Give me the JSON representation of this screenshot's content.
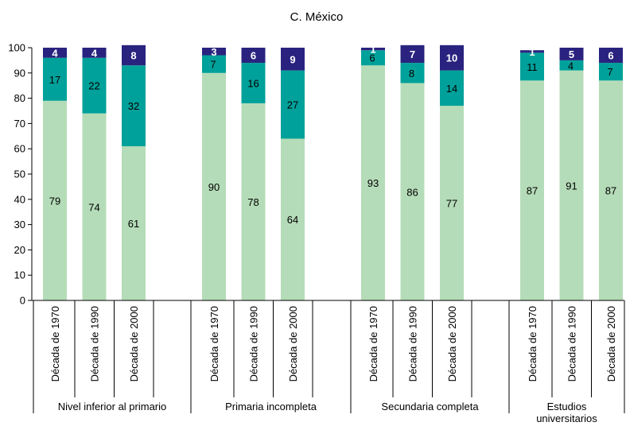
{
  "chart_data": {
    "type": "bar",
    "stacked": true,
    "title": "C. México",
    "ylim": [
      0,
      100
    ],
    "yticks": [
      0,
      10,
      20,
      30,
      40,
      50,
      60,
      70,
      80,
      90,
      100
    ],
    "groups": [
      {
        "label": "Nivel inferior al primario",
        "categories": [
          "Década de 1970",
          "Década de 1990",
          "Década de 2000"
        ]
      },
      {
        "label": "Primaria incompleta",
        "categories": [
          "Década de 1970",
          "Década de 1990",
          "Década de 2000"
        ]
      },
      {
        "label": "Secundaria completa",
        "categories": [
          "Década de 1970",
          "Década de 1990",
          "Década de 2000"
        ]
      },
      {
        "label": "Estudios universitarios",
        "categories": [
          "Década de 1970",
          "Década de 1990",
          "Década de 2000"
        ]
      }
    ],
    "series": [
      {
        "color": "#b5dcb8",
        "label_color": "#000000",
        "values": [
          79,
          74,
          61,
          90,
          78,
          64,
          93,
          86,
          77,
          87,
          91,
          87
        ]
      },
      {
        "color": "#00a19a",
        "label_color": "#000000",
        "values": [
          17,
          22,
          32,
          7,
          16,
          27,
          6,
          8,
          14,
          11,
          4,
          7
        ]
      },
      {
        "color": "#29237f",
        "label_color": "#ffffff",
        "values": [
          4,
          4,
          8,
          3,
          6,
          9,
          1,
          7,
          10,
          1,
          5,
          6
        ]
      }
    ]
  }
}
